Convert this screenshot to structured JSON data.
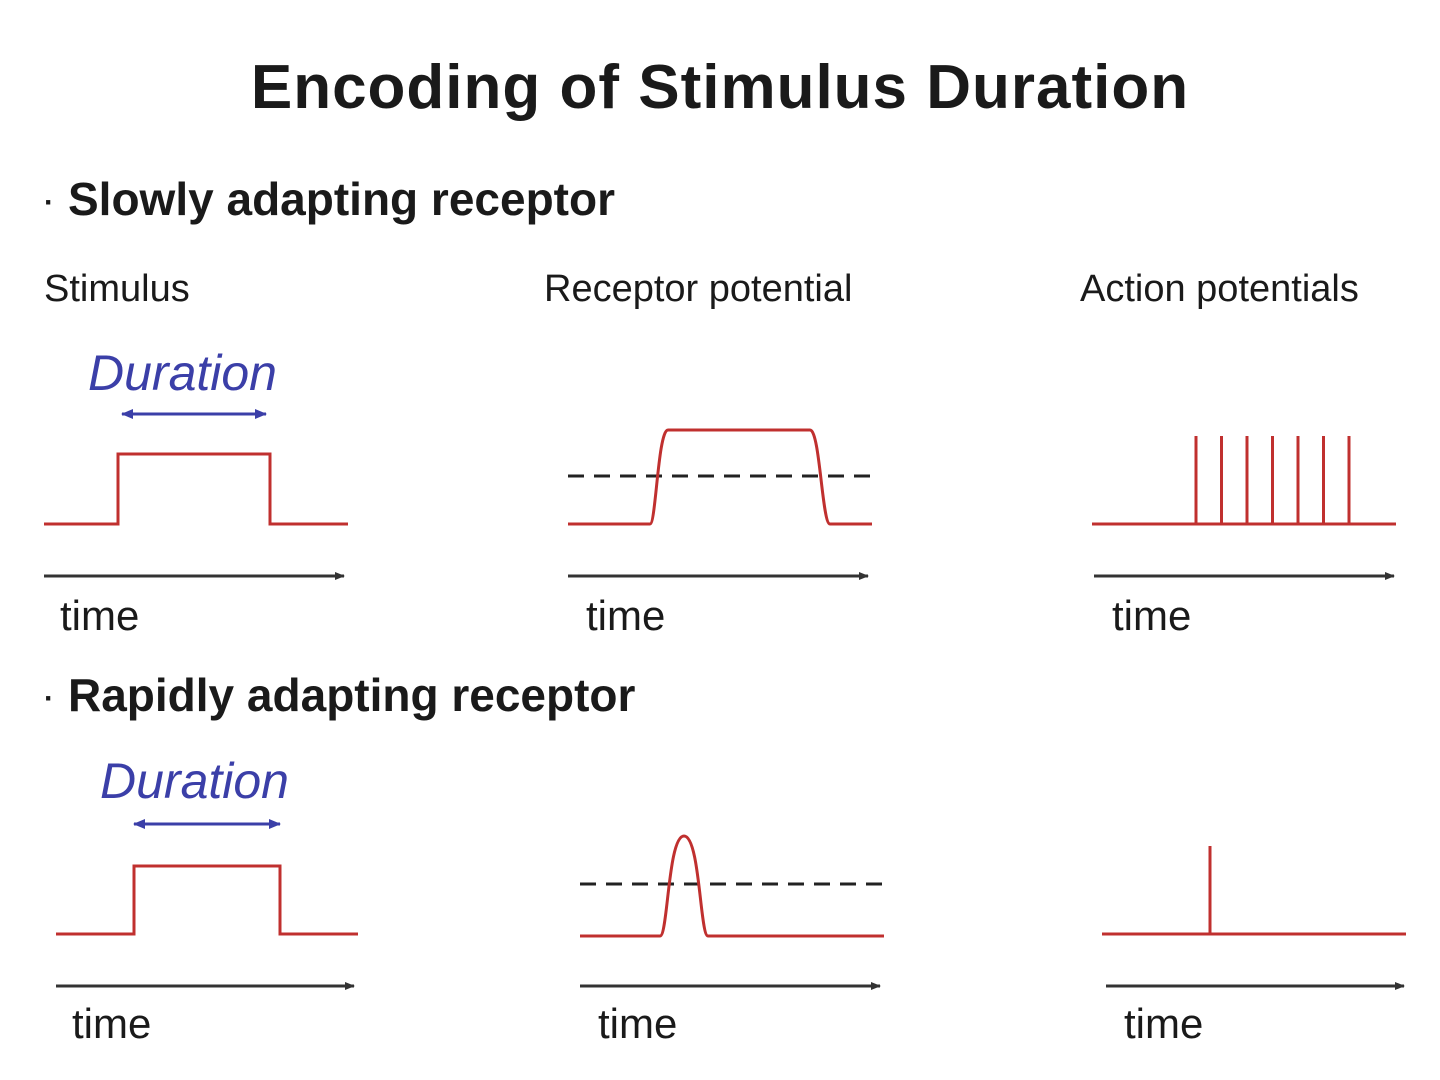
{
  "title": "Encoding of Stimulus Duration",
  "sections": [
    {
      "bullet": "·",
      "heading": "Slowly adapting receptor",
      "duration_label": "Duration",
      "time_label": "time"
    },
    {
      "bullet": "·",
      "heading": "Rapidly adapting receptor",
      "duration_label": "Duration",
      "time_label": "time"
    }
  ],
  "columns": [
    "Stimulus",
    "Receptor potential",
    "Action potentials"
  ],
  "colors": {
    "trace": "#c0302f",
    "duration": "#3b3fa8",
    "axis": "#333333",
    "threshold": "#222222"
  },
  "slow_action_potential_count": 7,
  "rapid_action_potential_count": 1
}
